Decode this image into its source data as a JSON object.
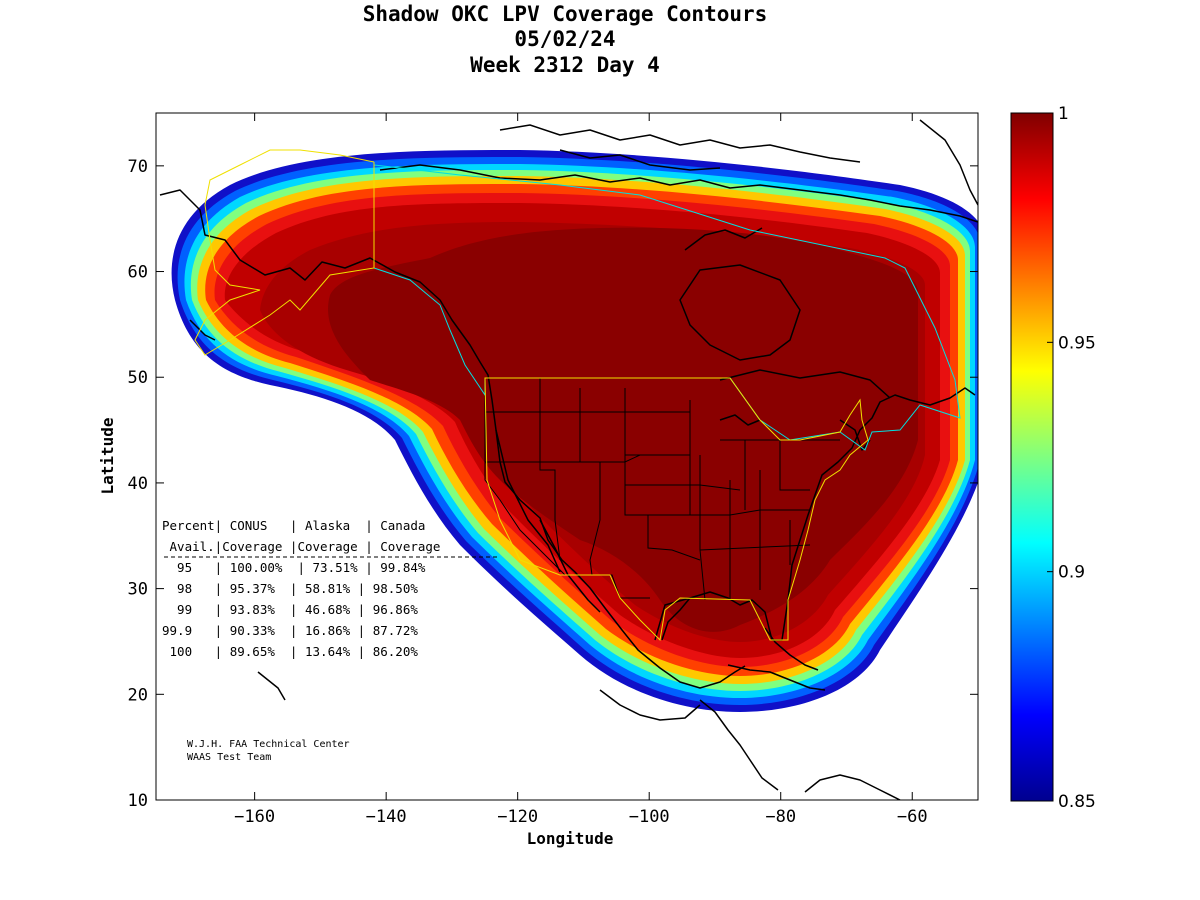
{
  "title": {
    "line1": "Shadow OKC LPV Coverage Contours",
    "line2": "05/02/24",
    "line3": "Week 2312 Day 4"
  },
  "axes": {
    "xlabel": "Longitude",
    "ylabel": "Latitude",
    "xlim": [
      -175,
      -50
    ],
    "ylim": [
      10,
      75
    ],
    "xticks": [
      -160,
      -140,
      -120,
      -100,
      -80,
      -60
    ],
    "yticks": [
      10,
      20,
      30,
      40,
      50,
      60,
      70
    ]
  },
  "colorbar": {
    "range": [
      0.85,
      1.0
    ],
    "ticks": [
      "1",
      "0.95",
      "0.9",
      "0.85"
    ],
    "tick_values": [
      1.0,
      0.95,
      0.9,
      0.85
    ],
    "colormap": "jet"
  },
  "table": {
    "header1": "Percent| CONUS   | Alaska  | Canada",
    "header2": " Avail.|Coverage |Coverage | Coverage",
    "rows": [
      "  95   | 100.00%  | 73.51% | 99.84%",
      "  98   | 95.37%  | 58.81% | 98.50%",
      "  99   | 93.83%  | 46.68% | 96.86%",
      "99.9   | 90.33%  | 16.86% | 87.72%",
      " 100   | 89.65%  | 13.64% | 86.20%"
    ]
  },
  "credits": {
    "line1": "W.J.H. FAA Technical Center",
    "line2": "WAAS Test Team"
  },
  "chart_data": {
    "type": "heatmap",
    "title": "Shadow OKC LPV Coverage Contours",
    "subtitle": "05/02/24 Week 2312 Day 4",
    "xlabel": "Longitude",
    "ylabel": "Latitude",
    "xlim": [
      -175,
      -50
    ],
    "ylim": [
      10,
      75
    ],
    "colorbar_range": [
      0.85,
      1.0
    ],
    "coverage_table": {
      "columns": [
        "Percent Avail.",
        "CONUS Coverage",
        "Alaska Coverage",
        "Canada Coverage"
      ],
      "rows": [
        [
          "95",
          "100.00%",
          "73.51%",
          "99.84%"
        ],
        [
          "98",
          "95.37%",
          "58.81%",
          "98.50%"
        ],
        [
          "99",
          "93.83%",
          "46.68%",
          "96.86%"
        ],
        [
          "99.9",
          "90.33%",
          "16.86%",
          "87.72%"
        ],
        [
          "100",
          "89.65%",
          "13.64%",
          "86.20%"
        ]
      ]
    }
  }
}
